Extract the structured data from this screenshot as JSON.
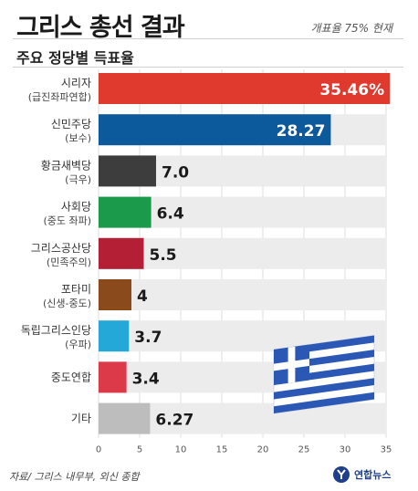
{
  "header": {
    "title": "그리스 총선 결과",
    "subtitle": "주요 정당별 득표율",
    "note": "개표율 75% 현재"
  },
  "footer": {
    "source": "자료/ 그리스 내무부, 외신 종합",
    "logo_text": "연합뉴스"
  },
  "colors": {
    "bar_bg": "#ececec",
    "grid": "#dcdcdc",
    "flag_blue": "#2a58b4"
  },
  "chart_data": {
    "type": "bar",
    "orientation": "horizontal",
    "categories": [
      {
        "name": "시리자",
        "sub": "(급진좌파연합)"
      },
      {
        "name": "신민주당",
        "sub": "(보수)"
      },
      {
        "name": "황금새벽당",
        "sub": "(극우)"
      },
      {
        "name": "사회당",
        "sub": "(중도 좌파)"
      },
      {
        "name": "그리스공산당",
        "sub": "(민족주의)"
      },
      {
        "name": "포타미",
        "sub": "(신생-중도)"
      },
      {
        "name": "독립그리스인당",
        "sub": "(우파)"
      },
      {
        "name": "중도연합",
        "sub": ""
      },
      {
        "name": "기타",
        "sub": ""
      }
    ],
    "values": [
      35.46,
      28.27,
      7.0,
      6.4,
      5.5,
      4,
      3.7,
      3.4,
      6.27
    ],
    "value_labels": [
      "35.46%",
      "28.27",
      "7.0",
      "6.4",
      "5.5",
      "4",
      "3.7",
      "3.4",
      "6.27"
    ],
    "colors": [
      "#e03a2f",
      "#0c5a9c",
      "#3d3d3d",
      "#1a9a4a",
      "#b51f35",
      "#8a4a1c",
      "#23a8d8",
      "#dc3a48",
      "#bdbdbd"
    ],
    "label_inside": [
      true,
      true,
      false,
      false,
      false,
      false,
      false,
      false,
      false
    ],
    "label_muted": [
      false,
      false,
      false,
      false,
      false,
      false,
      true,
      true,
      true
    ],
    "xlim": [
      0,
      35
    ],
    "xticks": [
      0,
      5,
      10,
      15,
      20,
      25,
      30,
      35
    ],
    "grid": true
  }
}
